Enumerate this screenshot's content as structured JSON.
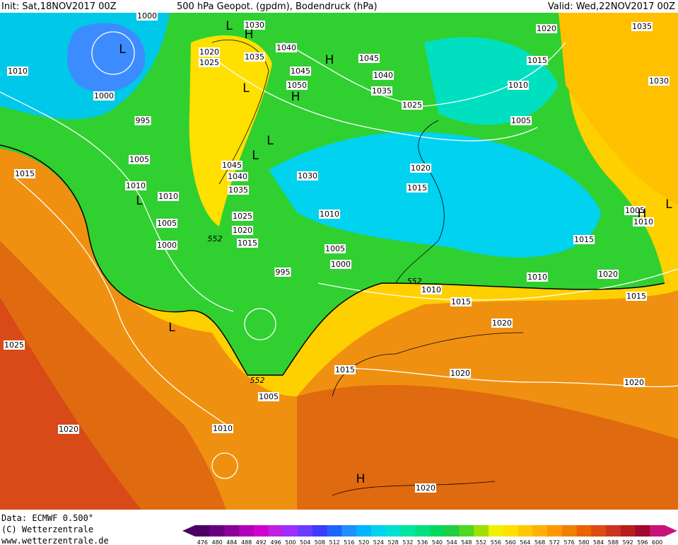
{
  "header": {
    "init": "Init: Sat,18NOV2017 00Z",
    "title": "500 hPa Geopot. (gpdm), Bodendruck (hPa)",
    "valid": "Valid: Wed,22NOV2017 00Z"
  },
  "isobar_labels": [
    "1000",
    "1030",
    "1020",
    "1025",
    "1035",
    "1040",
    "1045",
    "1050",
    "1045",
    "1040",
    "1035",
    "1025",
    "1020",
    "1035",
    "1015",
    "1010",
    "1030",
    "1005",
    "1010",
    "1000",
    "995",
    "1005",
    "1010",
    "1015",
    "1045",
    "1040",
    "1035",
    "1030",
    "1020",
    "1015",
    "1010",
    "1025",
    "1020",
    "1015",
    "1010",
    "1005",
    "1000",
    "1005",
    "1000",
    "995",
    "1005",
    "1010",
    "1015",
    "1010",
    "1020",
    "1010",
    "1015",
    "1015",
    "1020",
    "1025",
    "1015",
    "1020",
    "1020",
    "1005",
    "1010",
    "1020",
    "1020"
  ],
  "contour_labels": [
    "552",
    "552",
    "552"
  ],
  "pressure_centers": [
    "L",
    "L",
    "L",
    "H",
    "H",
    "H",
    "L",
    "L",
    "L",
    "L",
    "H",
    "H",
    "L"
  ],
  "footer": {
    "data": "Data: ECMWF   0.500°",
    "copyright": "(C) Wetterzentrale",
    "url": "www.wetterzentrale.de"
  },
  "colorbar": {
    "levels": [
      476,
      480,
      484,
      488,
      492,
      496,
      500,
      504,
      508,
      512,
      516,
      520,
      524,
      528,
      532,
      536,
      540,
      544,
      548,
      552,
      556,
      560,
      564,
      568,
      572,
      576,
      580,
      584,
      588,
      592,
      596,
      600
    ],
    "colors": [
      "#4b0066",
      "#6a0080",
      "#8a0099",
      "#b000b8",
      "#d000d0",
      "#c020e0",
      "#9b30ff",
      "#6a3cff",
      "#3c3cff",
      "#1e64ff",
      "#1e90ff",
      "#00b4ff",
      "#00d2f0",
      "#00e0d0",
      "#00e6a0",
      "#00e080",
      "#00d860",
      "#20d040",
      "#50d820",
      "#a0e000",
      "#f0f000",
      "#ffe000",
      "#ffc800",
      "#ffb000",
      "#ff9800",
      "#f08000",
      "#e86400",
      "#dc4c10",
      "#cc3420",
      "#b81e1e",
      "#a00a30",
      "#c81478"
    ]
  }
}
